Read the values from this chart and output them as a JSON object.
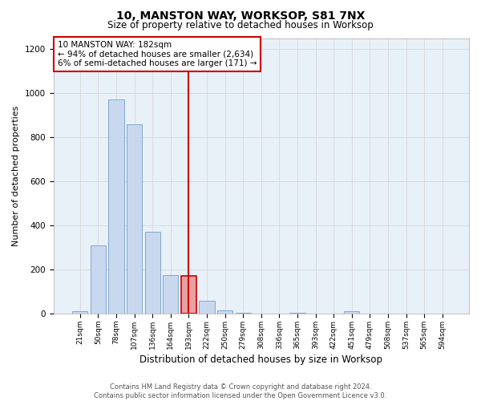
{
  "title": "10, MANSTON WAY, WORKSOP, S81 7NX",
  "subtitle": "Size of property relative to detached houses in Worksop",
  "xlabel": "Distribution of detached houses by size in Worksop",
  "ylabel": "Number of detached properties",
  "bar_color": "#c8d8ee",
  "bar_edge_color": "#6090c0",
  "highlight_bar_color": "#e8a0a0",
  "highlight_bar_edge_color": "#cc0000",
  "vline_color": "#cc0000",
  "vline_x": 6,
  "categories": [
    "21sqm",
    "50sqm",
    "78sqm",
    "107sqm",
    "136sqm",
    "164sqm",
    "193sqm",
    "222sqm",
    "250sqm",
    "279sqm",
    "308sqm",
    "336sqm",
    "365sqm",
    "393sqm",
    "422sqm",
    "451sqm",
    "479sqm",
    "508sqm",
    "537sqm",
    "565sqm",
    "594sqm"
  ],
  "values": [
    10,
    310,
    970,
    860,
    370,
    175,
    170,
    60,
    15,
    3,
    0,
    0,
    5,
    0,
    0,
    10,
    0,
    0,
    0,
    0,
    0
  ],
  "highlight_index": 6,
  "annotation_box_text": "10 MANSTON WAY: 182sqm\n← 94% of detached houses are smaller (2,634)\n6% of semi-detached houses are larger (171) →",
  "ylim": [
    0,
    1250
  ],
  "yticks": [
    0,
    200,
    400,
    600,
    800,
    1000,
    1200
  ],
  "footer_text": "Contains HM Land Registry data © Crown copyright and database right 2024.\nContains public sector information licensed under the Open Government Licence v3.0.",
  "grid_color": "#d8d8d8",
  "background_color": "#e8f0f8",
  "figsize": [
    6.0,
    5.0
  ],
  "dpi": 100
}
